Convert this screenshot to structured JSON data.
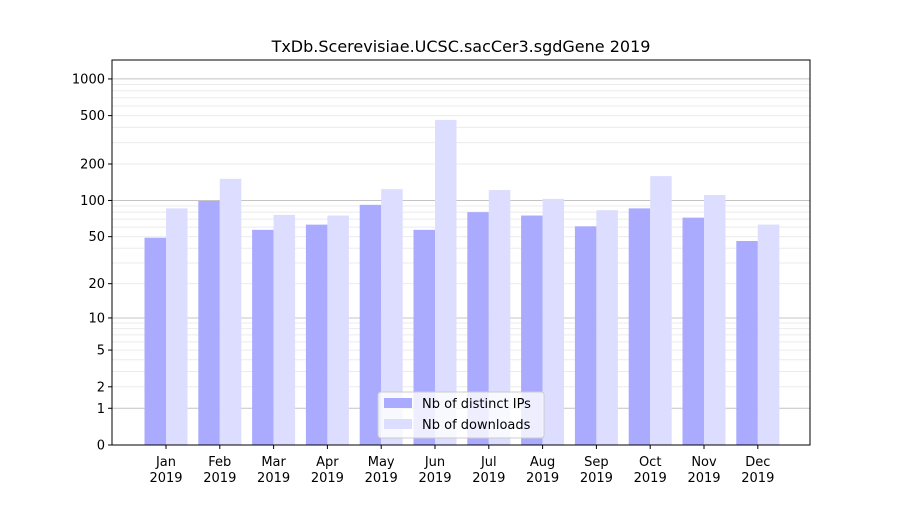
{
  "chart_data": {
    "type": "bar",
    "title": "TxDb.Scerevisiae.UCSC.sacCer3.sgdGene 2019",
    "xlabel": "",
    "ylabel": "",
    "yscale": "log(1+y)",
    "ylim": [
      0,
      1430
    ],
    "yticks": [
      0,
      1,
      2,
      5,
      10,
      20,
      50,
      100,
      200,
      500,
      1000
    ],
    "ytick_labels": [
      "0",
      "1",
      "2",
      "5",
      "10",
      "20",
      "50",
      "100",
      "200",
      "500",
      "1000"
    ],
    "grid": true,
    "legend_position": "bottom-center",
    "categories": [
      "Jan\n2019",
      "Feb\n2019",
      "Mar\n2019",
      "Apr\n2019",
      "May\n2019",
      "Jun\n2019",
      "Jul\n2019",
      "Aug\n2019",
      "Sep\n2019",
      "Oct\n2019",
      "Nov\n2019",
      "Dec\n2019"
    ],
    "category_months": [
      "Jan",
      "Feb",
      "Mar",
      "Apr",
      "May",
      "Jun",
      "Jul",
      "Aug",
      "Sep",
      "Oct",
      "Nov",
      "Dec"
    ],
    "category_year": "2019",
    "series": [
      {
        "name": "Nb of distinct IPs",
        "color": "#aaaaff",
        "values": [
          49,
          99,
          57,
          63,
          92,
          57,
          80,
          75,
          61,
          86,
          72,
          46
        ]
      },
      {
        "name": "Nb of downloads",
        "color": "#ddddff",
        "values": [
          86,
          151,
          76,
          75,
          124,
          461,
          122,
          103,
          83,
          159,
          111,
          63
        ]
      }
    ]
  }
}
